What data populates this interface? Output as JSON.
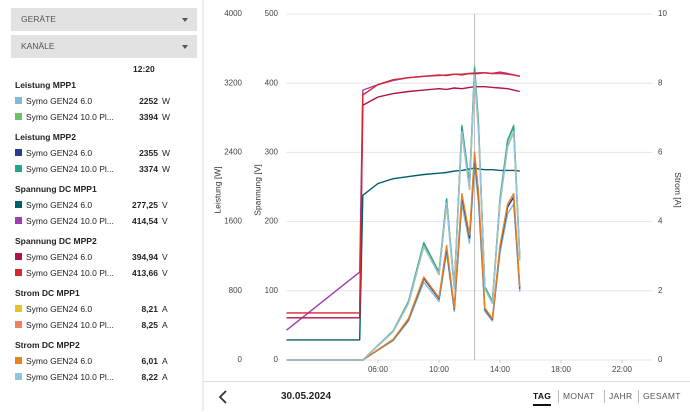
{
  "sidebar": {
    "dropdowns": [
      "GERÄTE",
      "KANÄLE"
    ]
  },
  "footer": {
    "date": "30.05.2024",
    "tabs": [
      "TAG",
      "MONAT",
      "JAHR",
      "GESAMT"
    ],
    "active_tab": "TAG"
  },
  "chart_data": {
    "type": "line",
    "cursor": {
      "value": 12.333,
      "label": "12:20"
    },
    "x": [
      0,
      4.8,
      5,
      6,
      7,
      8,
      9,
      10,
      10.5,
      11,
      11.5,
      12,
      12.333,
      12.6,
      13,
      13.5,
      14,
      14.5,
      14.9,
      15.3
    ],
    "xlim": [
      0,
      24
    ],
    "xticks": [
      {
        "value": 6,
        "label": "06:00"
      },
      {
        "value": 10,
        "label": "10:00"
      },
      {
        "value": 14,
        "label": "14:00"
      },
      {
        "value": 18,
        "label": "18:00"
      },
      {
        "value": 22,
        "label": "22:00"
      }
    ],
    "ylabel": "Leistung [W]",
    "ylim": [
      0,
      4000
    ],
    "yticks": [
      0,
      800,
      1600,
      2400,
      3200,
      4000
    ],
    "y2label": "Spannung [V]",
    "y2lim": [
      0,
      500
    ],
    "y2ticks": [
      0,
      100,
      200,
      300,
      400,
      500
    ],
    "y3label": "Strom [A]",
    "y3lim": [
      0,
      10
    ],
    "y3ticks": [
      0,
      2,
      4,
      6,
      8,
      10
    ],
    "grid": true,
    "groups": [
      {
        "title": "Leistung MPP1",
        "axis": "y",
        "unit": "W",
        "series": [
          {
            "name": "Symo GEN24 6.0",
            "color": "#7fb8d8",
            "value_label": "2252",
            "values": [
              0,
              0,
              0,
              113,
              225,
              450,
              901,
              676,
              1239,
              563,
              1802,
              1351,
              2252,
              1802,
              563,
              450,
              1239,
              1689,
              1802,
              788
            ]
          },
          {
            "name": "Symo GEN24 10.0 Pl...",
            "color": "#6cc06c",
            "value_label": "3394",
            "values": [
              0,
              0,
              0,
              170,
              339,
              679,
              1358,
              1018,
              1867,
              849,
              2715,
              2036,
              3394,
              2715,
              849,
              679,
              1867,
              2546,
              2715,
              1188
            ]
          }
        ]
      },
      {
        "title": "Leistung MPP2",
        "axis": "y",
        "unit": "W",
        "series": [
          {
            "name": "Symo GEN24 6.0",
            "color": "#2b3b8c",
            "value_label": "2355",
            "values": [
              0,
              0,
              0,
              118,
              236,
              471,
              942,
              707,
              1295,
              589,
              1884,
              1413,
              2355,
              1884,
              589,
              471,
              1295,
              1766,
              1884,
              824
            ]
          },
          {
            "name": "Symo GEN24 10.0 Pl...",
            "color": "#20a88a",
            "value_label": "3374",
            "values": [
              0,
              0,
              0,
              169,
              337,
              675,
              1350,
              1012,
              1856,
              844,
              2699,
              2024,
              3374,
              2699,
              844,
              675,
              1856,
              2531,
              2699,
              1181
            ]
          }
        ]
      },
      {
        "title": "Spannung DC MPP1",
        "axis": "y2",
        "unit": "V",
        "series": [
          {
            "name": "Symo GEN24 6.0",
            "color": "#00606a",
            "value_label": "277,25",
            "values": [
              29,
              29,
              238,
              255,
              262,
              265,
              268,
              270,
              271,
              273,
              274,
              276,
              277.25,
              276,
              275,
              275,
              274,
              274,
              274,
              273
            ]
          },
          {
            "name": "Symo GEN24 10.0 Pl...",
            "color": "#9c3fb0",
            "value_label": "414,54",
            "values": [
              43,
              127,
              390,
              398,
              404,
              408,
              410,
              411,
              412,
              413,
              413,
              414,
              414.54,
              415,
              415,
              414,
              414,
              413,
              412,
              410
            ]
          }
        ]
      },
      {
        "title": "Spannung DC MPP2",
        "axis": "y2",
        "unit": "V",
        "series": [
          {
            "name": "Symo GEN24 6.0",
            "color": "#b0124e",
            "value_label": "394,94",
            "values": [
              61,
              61,
              368,
              380,
              385,
              388,
              390,
              392,
              391,
              393,
              392,
              394,
              394.94,
              395,
              395,
              394,
              393,
              392,
              390,
              388
            ]
          },
          {
            "name": "Symo GEN24 10.0 Pl...",
            "color": "#d8262e",
            "value_label": "413,66",
            "values": [
              68,
              68,
              383,
              398,
              405,
              408,
              410,
              412,
              411,
              413,
              412,
              414,
              413.66,
              414,
              415,
              414,
              416,
              414,
              412,
              410
            ]
          }
        ]
      },
      {
        "title": "Strom DC MPP1",
        "axis": "y3",
        "unit": "A",
        "series": [
          {
            "name": "Symo GEN24 6.0",
            "color": "#e6c229",
            "value_label": "8,21",
            "values": [
              0,
              0,
              0,
              0.41,
              0.82,
              1.64,
              3.28,
              2.46,
              4.52,
              2.05,
              6.57,
              4.93,
              8.21,
              6.57,
              2.05,
              1.64,
              4.52,
              6.16,
              6.57,
              2.87
            ]
          },
          {
            "name": "Symo GEN24 10.0 Pl...",
            "color": "#f08060",
            "value_label": "8,25",
            "values": [
              0,
              0,
              0,
              0.41,
              0.83,
              1.65,
              3.3,
              2.48,
              4.54,
              2.06,
              6.6,
              4.95,
              8.25,
              6.6,
              2.06,
              1.65,
              4.54,
              6.19,
              6.6,
              2.89
            ]
          }
        ]
      },
      {
        "title": "Strom DC MPP2",
        "axis": "y3",
        "unit": "A",
        "series": [
          {
            "name": "Symo GEN24 6.0",
            "color": "#e8821e",
            "value_label": "6,01",
            "values": [
              0,
              0,
              0,
              0.3,
              0.6,
              1.2,
              2.4,
              1.8,
              3.31,
              1.5,
              4.81,
              3.61,
              6.01,
              4.81,
              1.5,
              1.2,
              3.31,
              4.51,
              4.81,
              2.1
            ]
          },
          {
            "name": "Symo GEN24 10.0 Pl...",
            "color": "#8ec5e0",
            "value_label": "8,22",
            "values": [
              0,
              0,
              0,
              0.41,
              0.82,
              1.64,
              3.29,
              2.47,
              4.52,
              2.06,
              6.58,
              4.93,
              8.22,
              6.58,
              2.06,
              1.64,
              4.52,
              6.17,
              6.58,
              2.88
            ]
          }
        ]
      }
    ]
  }
}
